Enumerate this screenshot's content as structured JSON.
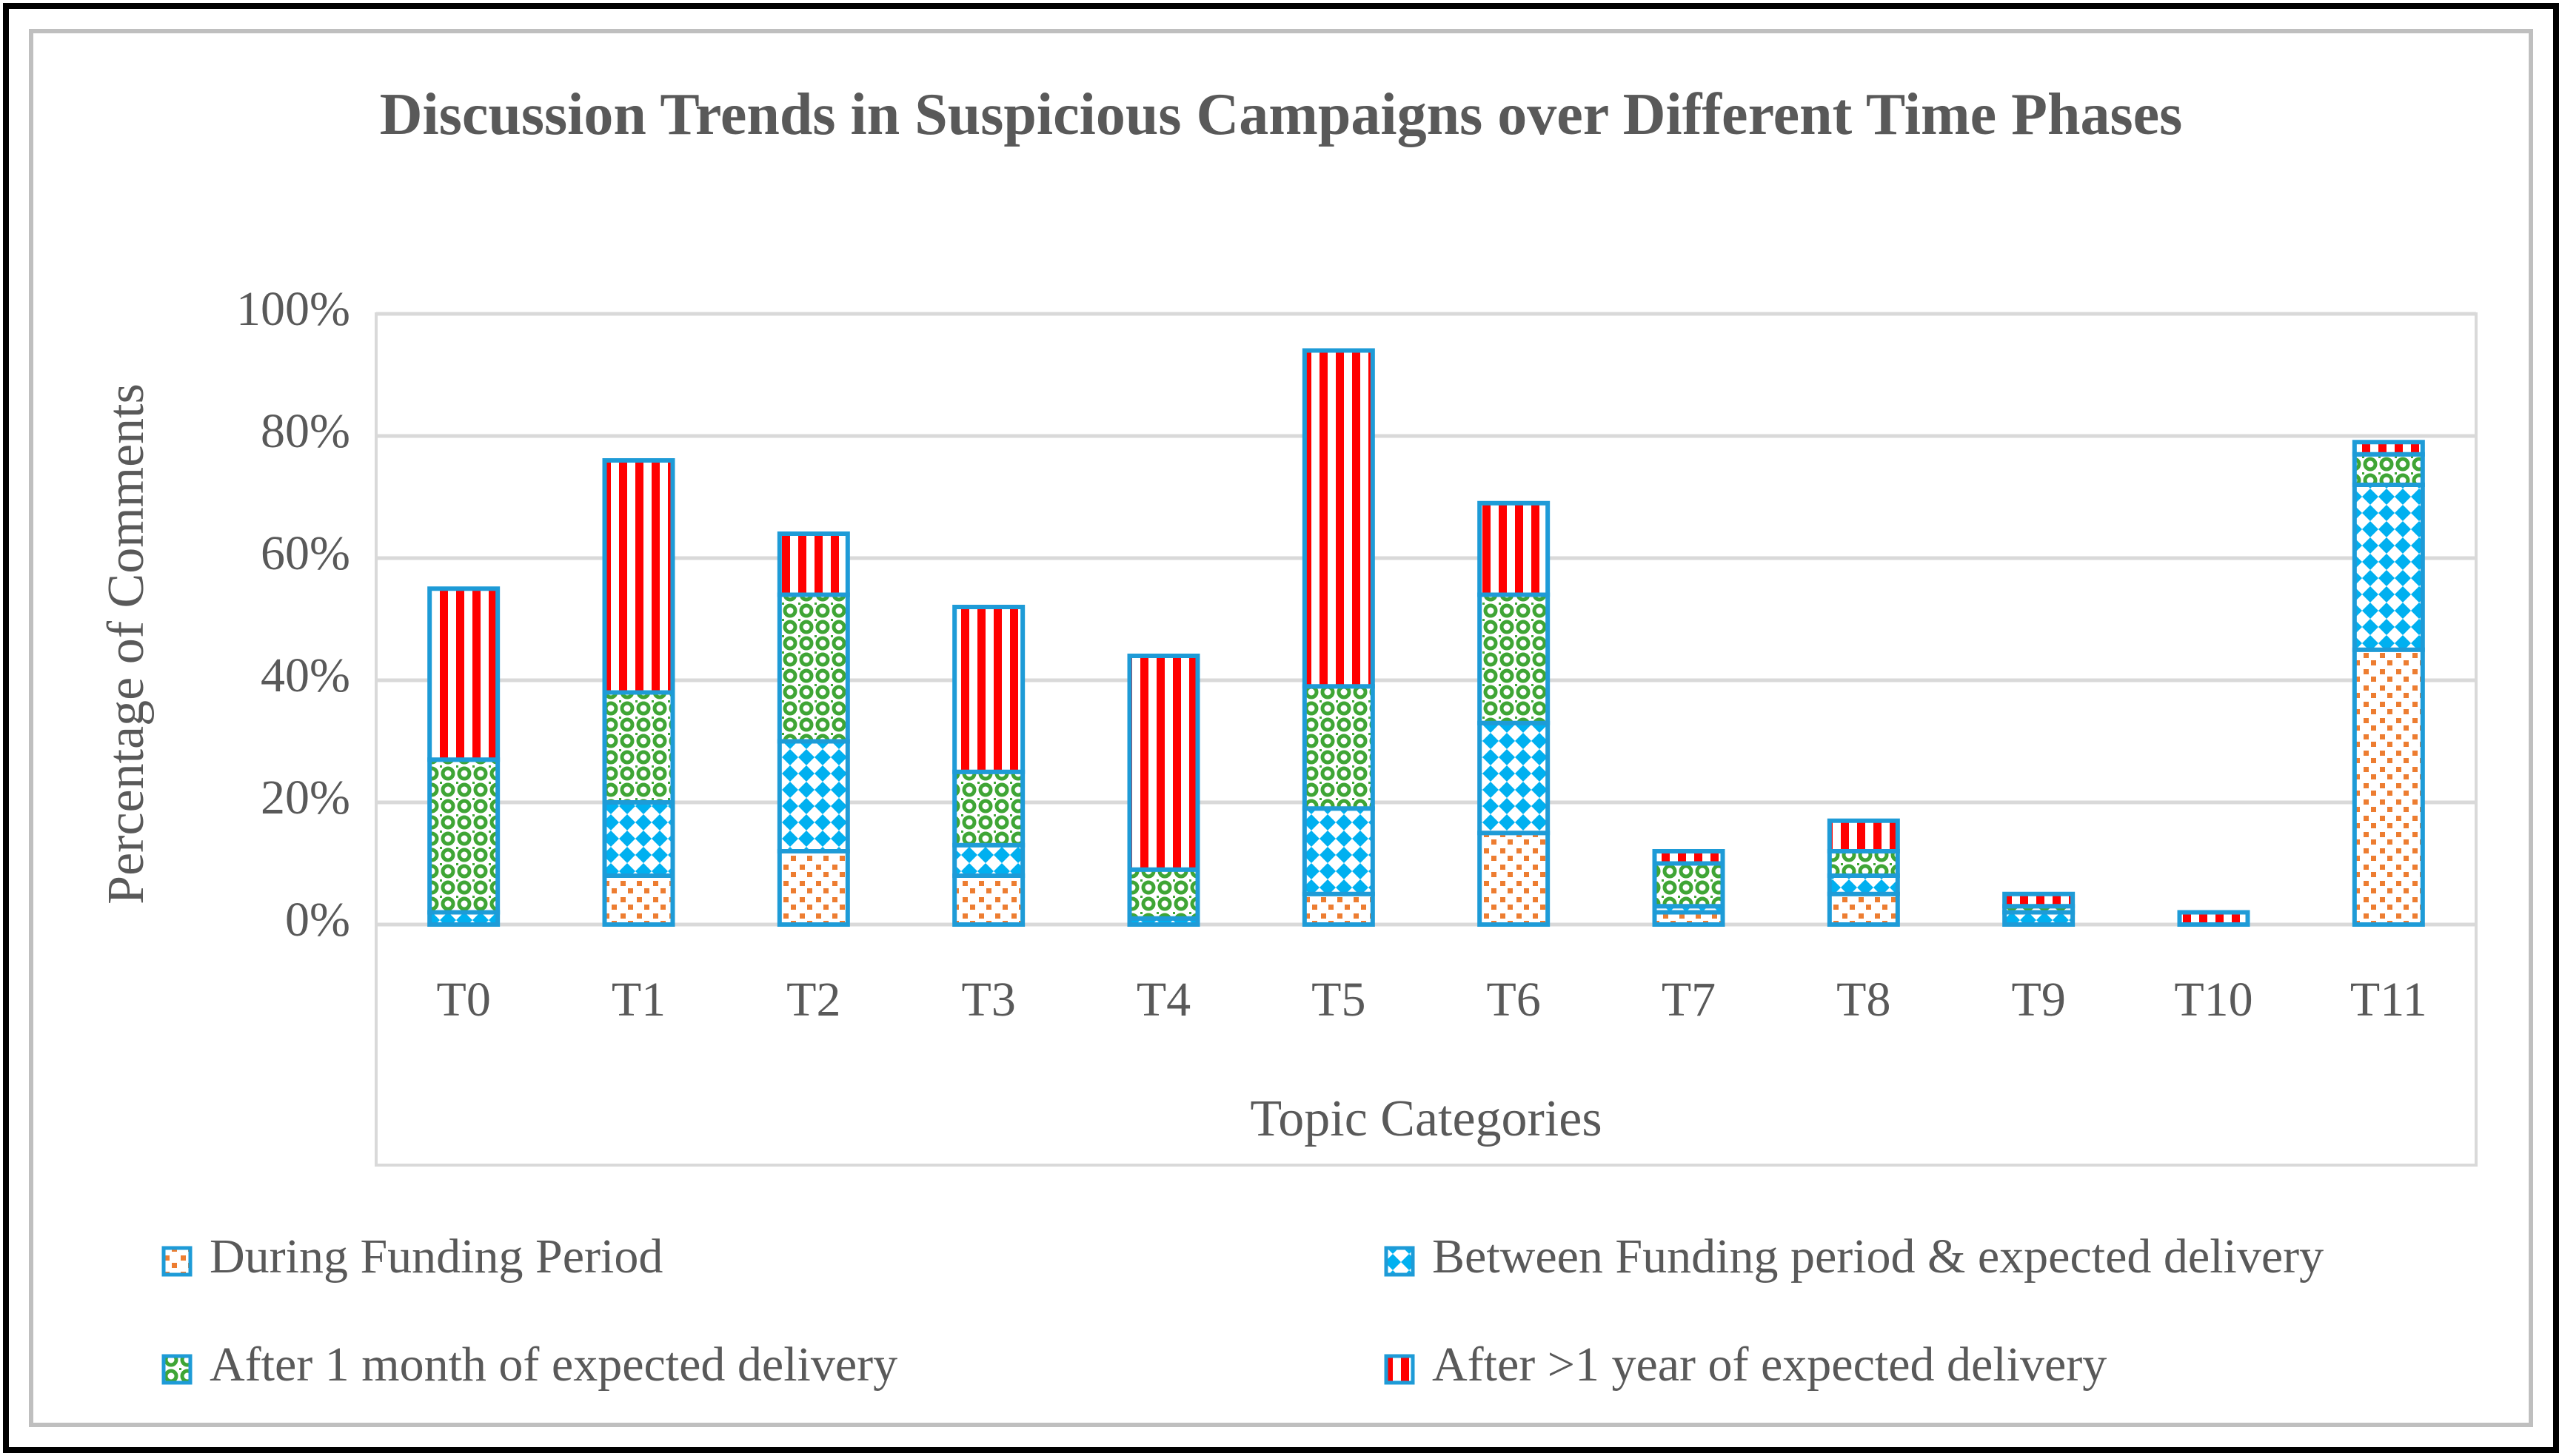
{
  "chart_data": {
    "type": "stacked_bar",
    "title": "Discussion Trends in Suspicious Campaigns over Different Time Phases",
    "x_label": "Topic Categories",
    "y_label": "Percentage of Comments",
    "categories": [
      "T0",
      "T1",
      "T2",
      "T3",
      "T4",
      "T5",
      "T6",
      "T7",
      "T8",
      "T9",
      "T10",
      "T11"
    ],
    "series": [
      {
        "name": "During Funding Period",
        "color": "#ed7d31",
        "values": [
          0,
          8,
          12,
          8,
          0,
          5,
          15,
          2,
          5,
          0,
          0,
          45
        ]
      },
      {
        "name": "Between Funding period & expected delivery",
        "color": "#00b0f0",
        "values": [
          2,
          12,
          18,
          5,
          1,
          14,
          18,
          1,
          3,
          2,
          0,
          27
        ]
      },
      {
        "name": "After 1 month of expected delivery",
        "color": "#3fa535",
        "values": [
          25,
          18,
          24,
          12,
          8,
          20,
          21,
          7,
          4,
          1,
          0,
          5
        ]
      },
      {
        "name": "After >1 year of expected delivery",
        "color": "#ff0000",
        "values": [
          28,
          38,
          10,
          27,
          35,
          55,
          15,
          2,
          5,
          2,
          2,
          2
        ]
      }
    ],
    "ylim": [
      0,
      100
    ],
    "yticks": [
      {
        "value": 0,
        "label": "0%"
      },
      {
        "value": 20,
        "label": "20%"
      },
      {
        "value": 40,
        "label": "40%"
      },
      {
        "value": 60,
        "label": "60%"
      },
      {
        "value": 80,
        "label": "80%"
      },
      {
        "value": 100,
        "label": "100%"
      }
    ],
    "grid": true,
    "legend": "bottom"
  }
}
